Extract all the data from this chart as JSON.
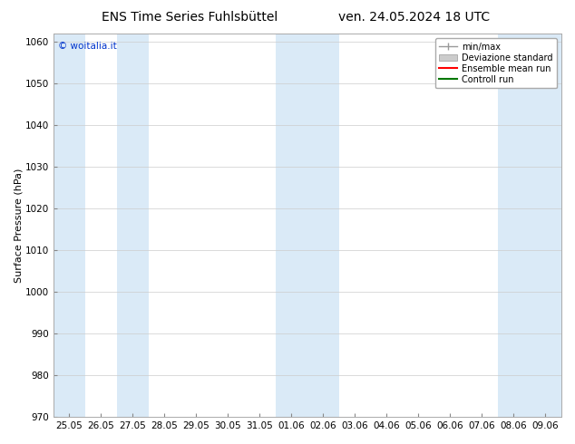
{
  "title_left": "ENS Time Series Fuhlsbüttel",
  "title_right": "ven. 24.05.2024 18 UTC",
  "ylabel": "Surface Pressure (hPa)",
  "ylim": [
    970,
    1062
  ],
  "yticks": [
    970,
    980,
    990,
    1000,
    1010,
    1020,
    1030,
    1040,
    1050,
    1060
  ],
  "x_labels": [
    "25.05",
    "26.05",
    "27.05",
    "28.05",
    "29.05",
    "30.05",
    "31.05",
    "01.06",
    "02.06",
    "03.06",
    "04.06",
    "05.06",
    "06.06",
    "07.06",
    "08.06",
    "09.06"
  ],
  "bg_color": "#ffffff",
  "plot_bg_color": "#ffffff",
  "band_color": "#daeaf7",
  "watermark": "© woitalia.it",
  "legend_entries": [
    "min/max",
    "Deviazione standard",
    "Ensemble mean run",
    "Controll run"
  ],
  "legend_colors": [
    "#aaaaaa",
    "#cccccc",
    "#ff0000",
    "#007700"
  ],
  "band_positions": [
    0,
    2,
    7,
    8,
    14,
    15
  ],
  "title_fontsize": 10,
  "axis_fontsize": 8,
  "tick_fontsize": 7.5
}
